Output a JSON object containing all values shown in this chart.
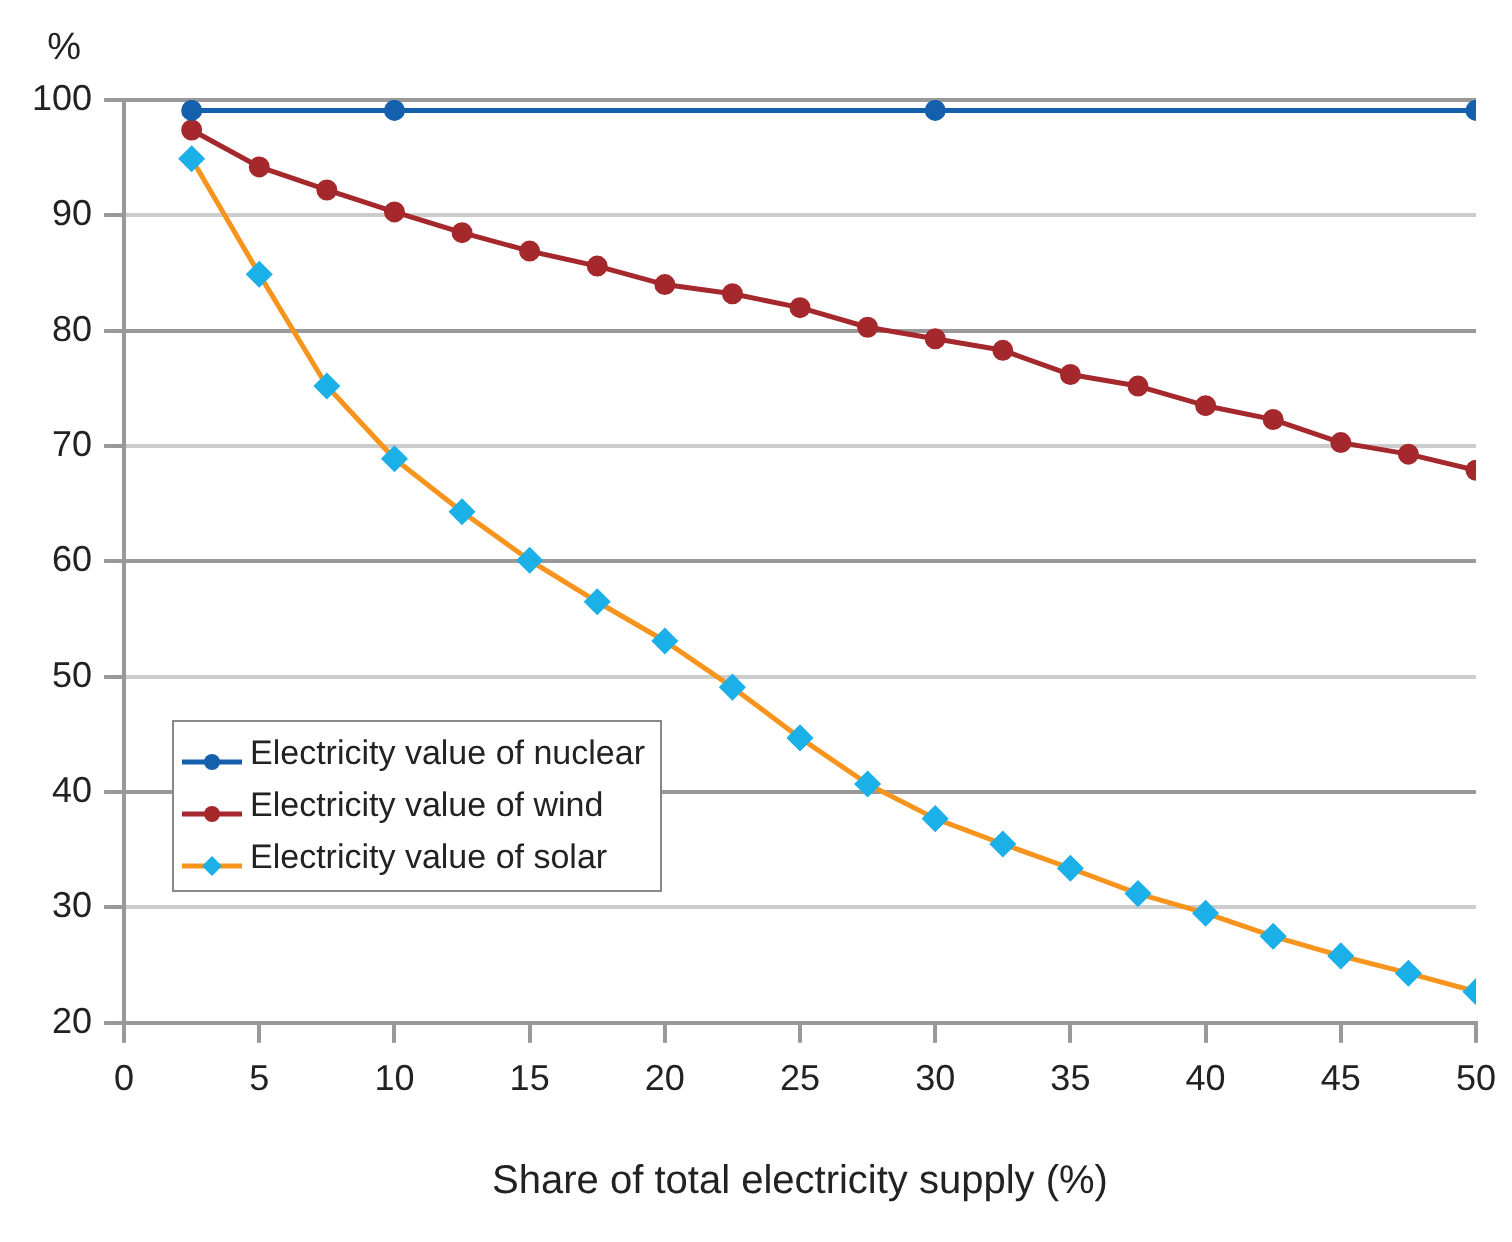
{
  "chart_data": {
    "type": "line",
    "xlabel": "Share of total electricity supply (%)",
    "ylabel": "%",
    "xlim": [
      0,
      50
    ],
    "xticks": [
      0,
      5,
      10,
      15,
      20,
      25,
      30,
      35,
      40,
      45,
      50
    ],
    "ylim": [
      20,
      100
    ],
    "yticks": [
      20,
      30,
      40,
      50,
      60,
      70,
      80,
      90,
      100
    ],
    "grid": "y",
    "legend": "left",
    "line_style": "solid",
    "series": [
      {
        "name": "Electricity value of nuclear",
        "color": "#1560ad",
        "marker": "circle",
        "x": [
          2.5,
          10,
          30,
          50
        ],
        "values": [
          99.1,
          99.1,
          99.1,
          99.1
        ]
      },
      {
        "name": "Electricity value of wind",
        "color": "#a4282c",
        "marker": "circle",
        "x": [
          2.5,
          5,
          7.5,
          10,
          12.5,
          15,
          17.5,
          20,
          22.5,
          25,
          27.5,
          30,
          32.5,
          35,
          37.5,
          40,
          42.5,
          45,
          47.5,
          50
        ],
        "values": [
          97.4,
          94.2,
          92.2,
          90.3,
          88.5,
          86.9,
          85.6,
          84.0,
          83.2,
          82.0,
          80.3,
          79.3,
          78.3,
          76.2,
          75.2,
          73.5,
          72.3,
          70.3,
          69.3,
          67.9
        ]
      },
      {
        "name": "Electricity value of solar",
        "color": "#f7941d",
        "marker": "diamond",
        "colors": [
          "#1cb0e8",
          "#1cb0e8",
          "#1cb0e8",
          "#1cb0e8",
          "#1cb0e8",
          "#1cb0e8",
          "#1cb0e8",
          "#1cb0e8",
          "#1cb0e8",
          "#1cb0e8",
          "#1cb0e8",
          "#1cb0e8",
          "#1cb0e8",
          "#1cb0e8",
          "#1cb0e8",
          "#1cb0e8",
          "#1cb0e8",
          "#1cb0e8",
          "#1cb0e8",
          "#1cb0e8"
        ],
        "x": [
          2.5,
          5,
          7.5,
          10,
          12.5,
          15,
          17.5,
          20,
          22.5,
          25,
          27.5,
          30,
          32.5,
          35,
          37.5,
          40,
          42.5,
          45,
          47.5,
          50
        ],
        "values": [
          94.9,
          84.9,
          75.2,
          68.9,
          64.3,
          60.1,
          56.5,
          53.1,
          49.1,
          44.7,
          40.7,
          37.7,
          35.5,
          33.4,
          31.2,
          29.5,
          27.5,
          25.8,
          24.3,
          22.7
        ]
      }
    ]
  }
}
